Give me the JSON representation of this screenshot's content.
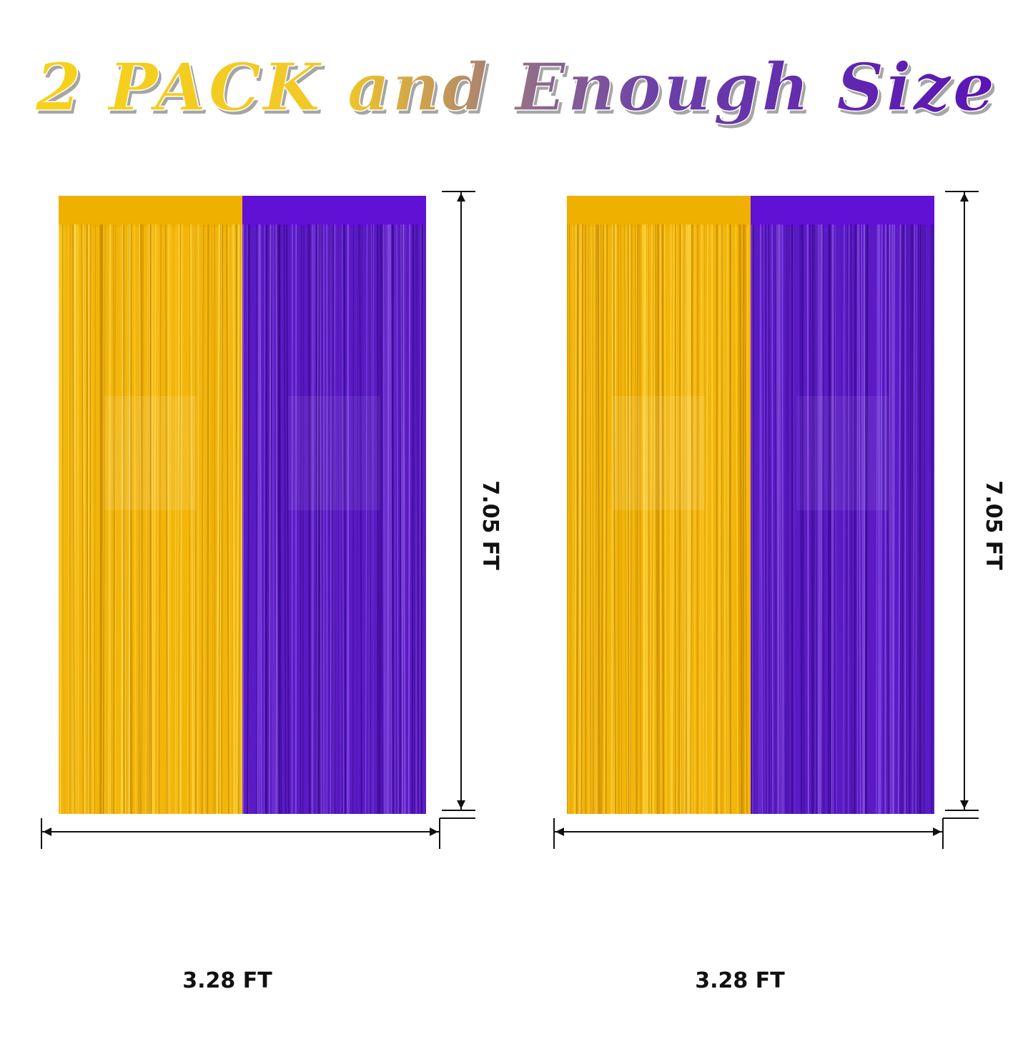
{
  "headline": {
    "part1": "2 PACK",
    "part2": "and",
    "part3": "Enough Size"
  },
  "colors": {
    "gold": "#f2b50a",
    "gold_light": "#ffd84a",
    "purple": "#5a1bc4",
    "purple_light": "#8a52e6"
  },
  "panels": [
    {
      "width_label": "3.28 FT",
      "height_label": "7.05 FT"
    },
    {
      "width_label": "3.28 FT",
      "height_label": "7.05 FT"
    }
  ]
}
